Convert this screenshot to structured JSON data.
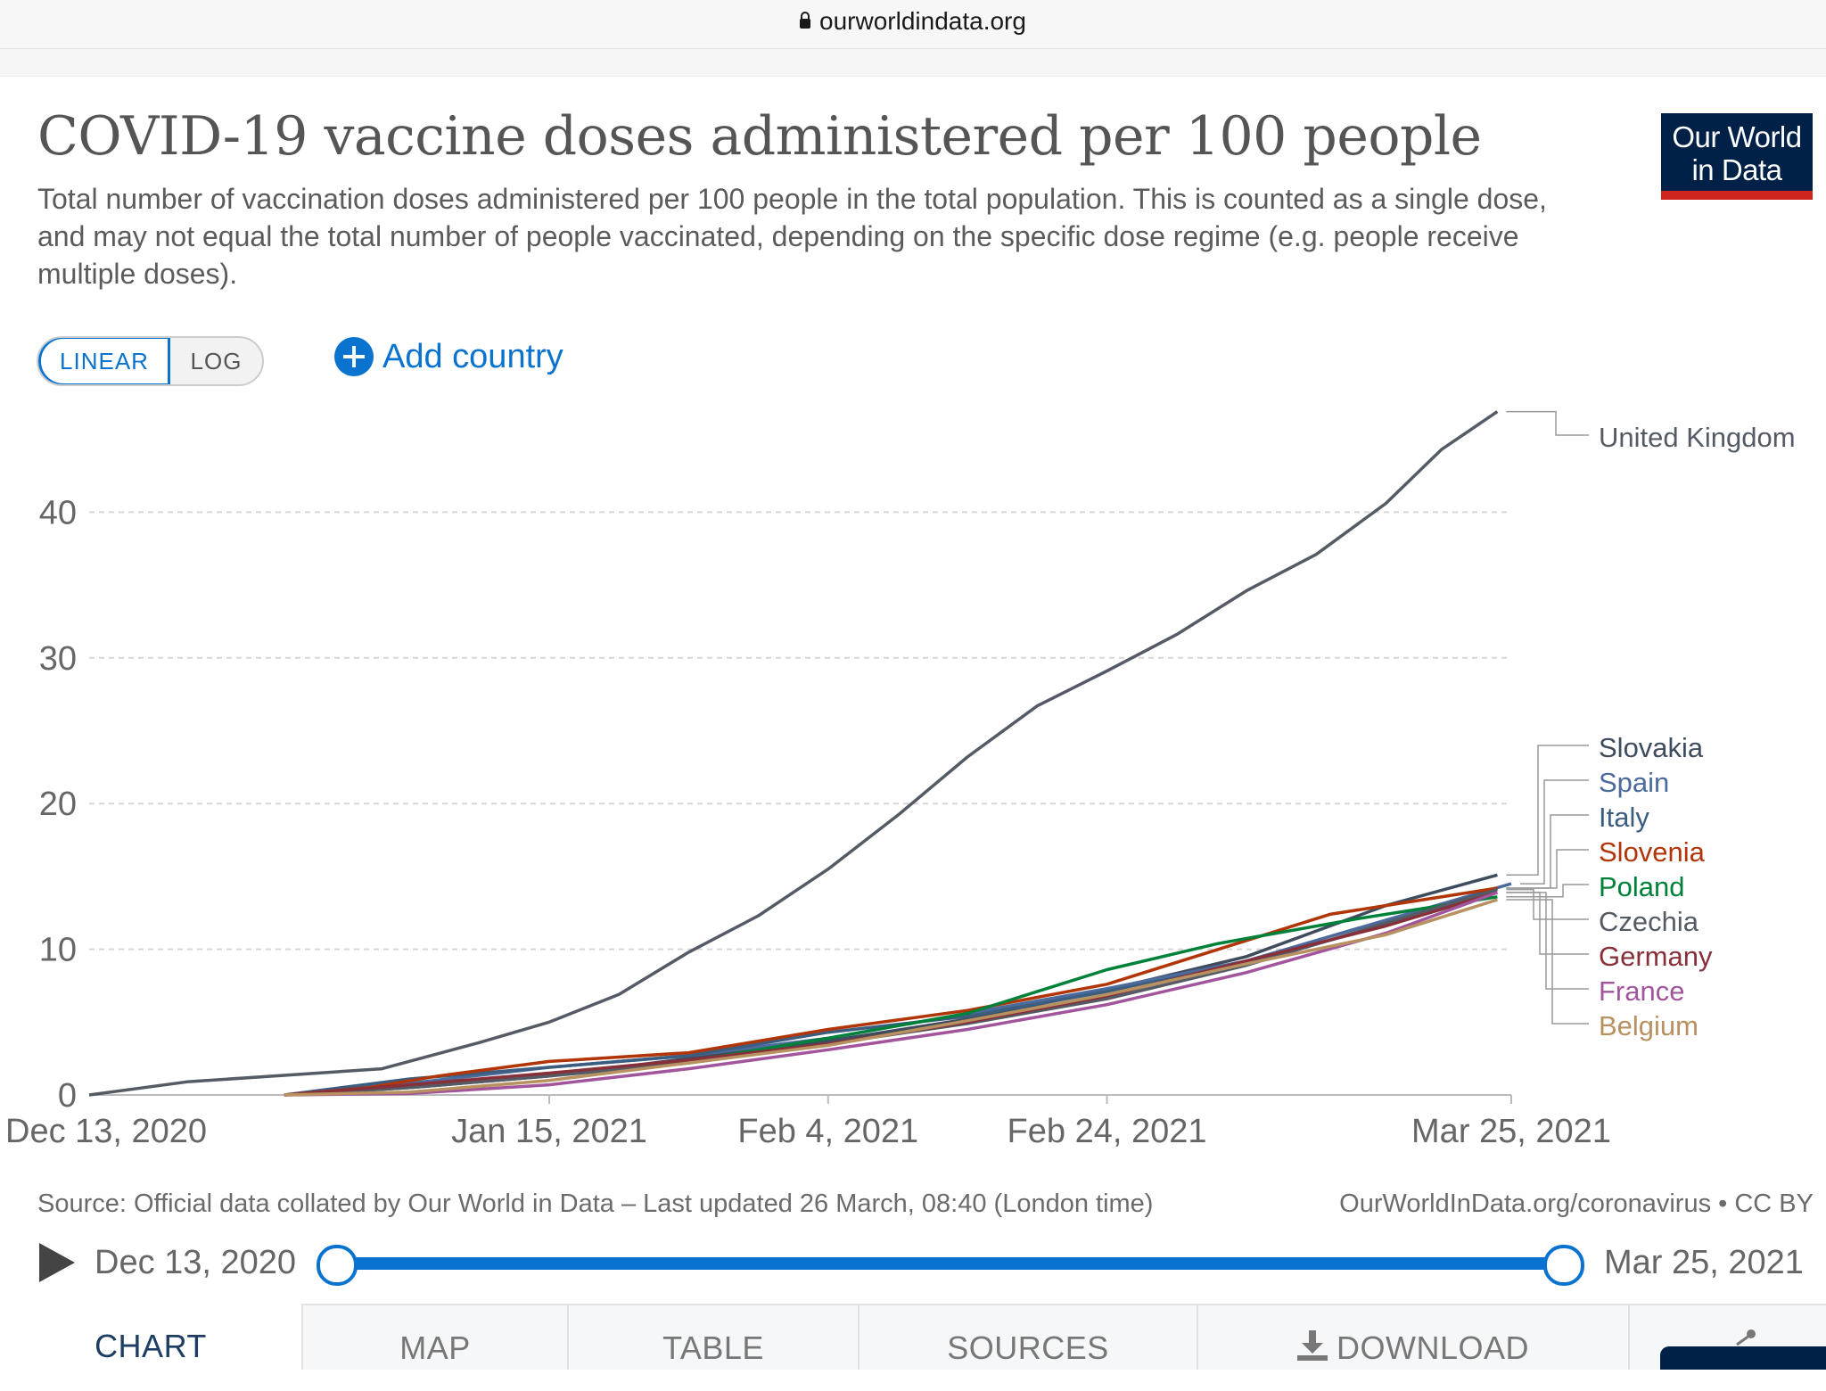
{
  "browser": {
    "url": "ourworldindata.org"
  },
  "header": {
    "title": "COVID-19 vaccine doses administered per 100 people",
    "subtitle": "Total number of vaccination doses administered per 100 people in the total population. This is counted as a single dose, and may not equal the total number of people vaccinated, depending on the specific dose regime (e.g. people receive multiple doses).",
    "logo_line1": "Our World",
    "logo_line2": "in Data"
  },
  "controls": {
    "linear_label": "LINEAR",
    "log_label": "LOG",
    "add_country_label": "Add country"
  },
  "chart_data": {
    "type": "line",
    "title": "COVID-19 vaccine doses administered per 100 people",
    "ylim": [
      0,
      47
    ],
    "yticks": [
      0,
      10,
      20,
      30,
      40
    ],
    "xlim": [
      "2020-12-13",
      "2021-03-25"
    ],
    "xtick_labels": [
      {
        "date": "2020-12-13",
        "label": "Dec 13, 2020"
      },
      {
        "date": "2021-01-15",
        "label": "Jan 15, 2021"
      },
      {
        "date": "2021-02-04",
        "label": "Feb 4, 2021"
      },
      {
        "date": "2021-02-24",
        "label": "Feb 24, 2021"
      },
      {
        "date": "2021-03-25",
        "label": "Mar 25, 2021"
      }
    ],
    "grid": "horizontal dashed",
    "legend": "right, end-of-line labels",
    "series": [
      {
        "name": "United Kingdom",
        "color": "#555b65",
        "points": [
          [
            "2020-12-13",
            0
          ],
          [
            "2020-12-20",
            0.9
          ],
          [
            "2021-01-03",
            1.8
          ],
          [
            "2021-01-10",
            3.6
          ],
          [
            "2021-01-15",
            5
          ],
          [
            "2021-01-20",
            6.9
          ],
          [
            "2021-01-25",
            9.8
          ],
          [
            "2021-01-30",
            12.3
          ],
          [
            "2021-02-04",
            15.5
          ],
          [
            "2021-02-09",
            19.2
          ],
          [
            "2021-02-14",
            23.2
          ],
          [
            "2021-02-19",
            26.7
          ],
          [
            "2021-02-24",
            29.1
          ],
          [
            "2021-03-01",
            31.6
          ],
          [
            "2021-03-06",
            34.6
          ],
          [
            "2021-03-11",
            37.1
          ],
          [
            "2021-03-16",
            40.6
          ],
          [
            "2021-03-20",
            44.3
          ],
          [
            "2021-03-24",
            46.9
          ]
        ]
      },
      {
        "name": "Slovakia",
        "color": "#3e4c5e",
        "points": [
          [
            "2020-12-27",
            0
          ],
          [
            "2021-01-05",
            0.5
          ],
          [
            "2021-01-15",
            1.3
          ],
          [
            "2021-01-25",
            2.5
          ],
          [
            "2021-02-04",
            3.7
          ],
          [
            "2021-02-14",
            5.2
          ],
          [
            "2021-02-24",
            7.2
          ],
          [
            "2021-03-06",
            9.5
          ],
          [
            "2021-03-16",
            13
          ],
          [
            "2021-03-24",
            15.1
          ]
        ]
      },
      {
        "name": "Spain",
        "color": "#4c6a9c",
        "points": [
          [
            "2020-12-27",
            0
          ],
          [
            "2021-01-05",
            0.8
          ],
          [
            "2021-01-15",
            1.9
          ],
          [
            "2021-01-25",
            2.7
          ],
          [
            "2021-02-04",
            3.9
          ],
          [
            "2021-02-14",
            5.6
          ],
          [
            "2021-02-24",
            7.3
          ],
          [
            "2021-03-06",
            9.2
          ],
          [
            "2021-03-16",
            12
          ],
          [
            "2021-03-25",
            14.5
          ]
        ]
      },
      {
        "name": "Italy",
        "color": "#3b5d80",
        "points": [
          [
            "2020-12-27",
            0
          ],
          [
            "2021-01-05",
            1.1
          ],
          [
            "2021-01-15",
            1.9
          ],
          [
            "2021-01-25",
            2.7
          ],
          [
            "2021-02-04",
            4.3
          ],
          [
            "2021-02-14",
            5.4
          ],
          [
            "2021-02-24",
            7.1
          ],
          [
            "2021-03-06",
            9
          ],
          [
            "2021-03-16",
            11.7
          ],
          [
            "2021-03-24",
            14.2
          ]
        ]
      },
      {
        "name": "Slovenia",
        "color": "#b13507",
        "points": [
          [
            "2020-12-27",
            0
          ],
          [
            "2021-01-02",
            0.5
          ],
          [
            "2021-01-07",
            1.3
          ],
          [
            "2021-01-15",
            2.3
          ],
          [
            "2021-01-25",
            2.9
          ],
          [
            "2021-02-04",
            4.5
          ],
          [
            "2021-02-14",
            5.8
          ],
          [
            "2021-02-24",
            7.6
          ],
          [
            "2021-03-06",
            10.6
          ],
          [
            "2021-03-12",
            12.4
          ],
          [
            "2021-03-24",
            14.2
          ]
        ]
      },
      {
        "name": "Poland",
        "color": "#00813a",
        "points": [
          [
            "2020-12-27",
            0
          ],
          [
            "2021-01-05",
            0.6
          ],
          [
            "2021-01-15",
            1.4
          ],
          [
            "2021-01-25",
            2.3
          ],
          [
            "2021-02-04",
            3.9
          ],
          [
            "2021-02-14",
            5.6
          ],
          [
            "2021-02-24",
            8.6
          ],
          [
            "2021-03-04",
            10.4
          ],
          [
            "2021-03-14",
            12.1
          ],
          [
            "2021-03-24",
            13.6
          ]
        ]
      },
      {
        "name": "Czechia",
        "color": "#555b65",
        "points": [
          [
            "2020-12-27",
            0
          ],
          [
            "2021-01-05",
            0.5
          ],
          [
            "2021-01-15",
            1.3
          ],
          [
            "2021-01-25",
            2.2
          ],
          [
            "2021-02-04",
            3.5
          ],
          [
            "2021-02-14",
            4.9
          ],
          [
            "2021-02-24",
            6.6
          ],
          [
            "2021-03-06",
            8.9
          ],
          [
            "2021-03-16",
            11.8
          ],
          [
            "2021-03-24",
            14.1
          ]
        ]
      },
      {
        "name": "Germany",
        "color": "#883039",
        "points": [
          [
            "2020-12-27",
            0
          ],
          [
            "2021-01-05",
            0.7
          ],
          [
            "2021-01-15",
            1.5
          ],
          [
            "2021-01-25",
            2.4
          ],
          [
            "2021-02-04",
            3.5
          ],
          [
            "2021-02-14",
            5
          ],
          [
            "2021-02-24",
            6.8
          ],
          [
            "2021-03-06",
            9.2
          ],
          [
            "2021-03-16",
            11.6
          ],
          [
            "2021-03-24",
            13.9
          ]
        ]
      },
      {
        "name": "France",
        "color": "#a2559c",
        "points": [
          [
            "2020-12-27",
            0
          ],
          [
            "2021-01-05",
            0.1
          ],
          [
            "2021-01-15",
            0.7
          ],
          [
            "2021-01-25",
            1.8
          ],
          [
            "2021-02-04",
            3.1
          ],
          [
            "2021-02-14",
            4.5
          ],
          [
            "2021-02-24",
            6.2
          ],
          [
            "2021-03-06",
            8.4
          ],
          [
            "2021-03-16",
            11.1
          ],
          [
            "2021-03-24",
            13.9
          ]
        ]
      },
      {
        "name": "Belgium",
        "color": "#b89160",
        "points": [
          [
            "2020-12-27",
            0
          ],
          [
            "2021-01-05",
            0.2
          ],
          [
            "2021-01-15",
            1
          ],
          [
            "2021-01-25",
            2.2
          ],
          [
            "2021-02-04",
            3.4
          ],
          [
            "2021-02-14",
            5.1
          ],
          [
            "2021-02-24",
            6.9
          ],
          [
            "2021-03-06",
            9
          ],
          [
            "2021-03-16",
            11
          ],
          [
            "2021-03-24",
            13.4
          ]
        ]
      }
    ]
  },
  "footer": {
    "source": "Source: Official data collated by Our World in Data – Last updated 26 March, 08:40 (London time)",
    "link": "OurWorldInData.org/coronavirus • CC BY"
  },
  "timeline": {
    "start": "Dec 13, 2020",
    "end": "Mar 25, 2021"
  },
  "tabs": {
    "chart": "CHART",
    "map": "MAP",
    "table": "TABLE",
    "sources": "SOURCES",
    "download": "DOWNLOAD"
  }
}
